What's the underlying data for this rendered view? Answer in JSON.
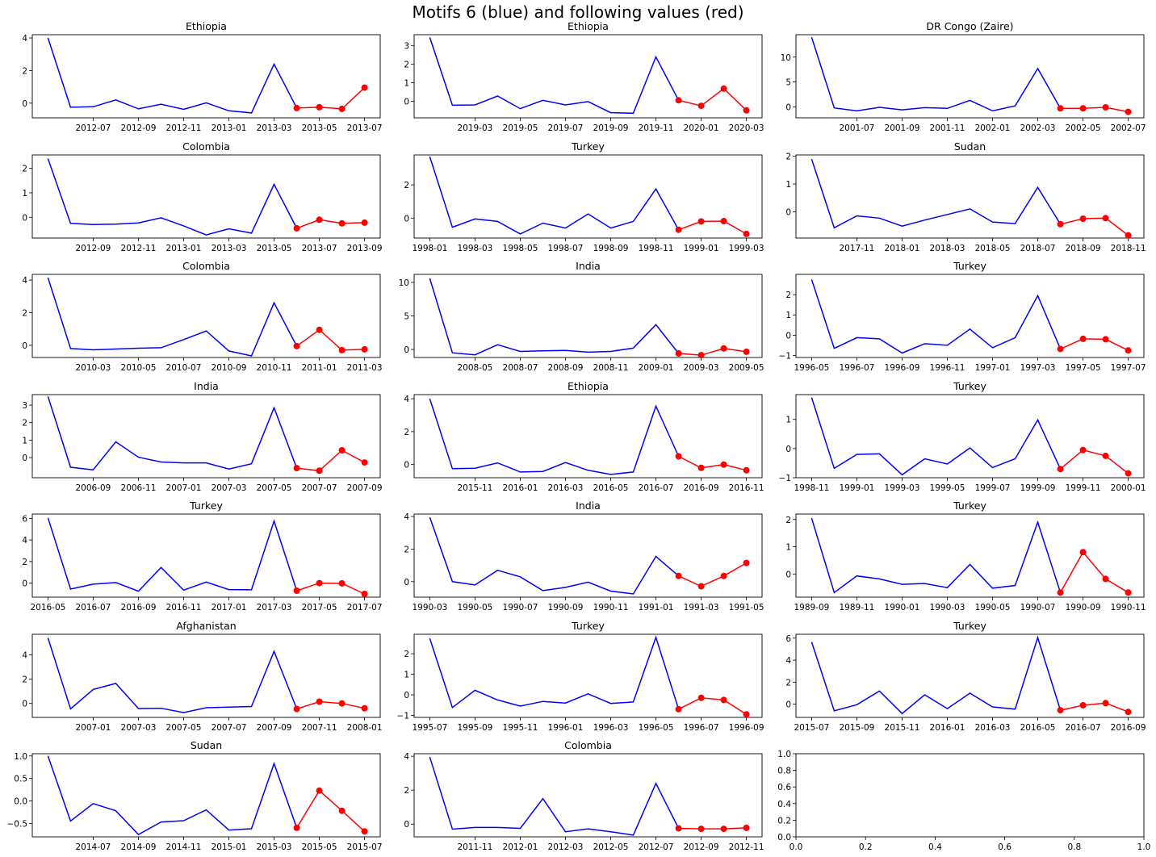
{
  "title": "Motifs 6 (blue) and following values (red)",
  "colors": {
    "motif": "#0000ff",
    "following": "#ff0000",
    "axis": "#000000"
  },
  "chart_data": [
    {
      "type": "line",
      "title": "Ethiopia",
      "ylim": [
        -0.9,
        4.2
      ],
      "yticks": [
        0,
        2,
        4
      ],
      "xticks": [
        "2012-07",
        "2012-09",
        "2012-11",
        "2013-01",
        "2013-03",
        "2013-05",
        "2013-07"
      ],
      "x_start": "2012-05",
      "motif": [
        4.0,
        -0.25,
        -0.22,
        0.2,
        -0.35,
        -0.07,
        -0.38,
        0.02,
        -0.47,
        -0.6,
        2.4,
        -0.3
      ],
      "following": [
        -0.3,
        -0.25,
        -0.35,
        0.95
      ]
    },
    {
      "type": "line",
      "title": "Ethiopia",
      "ylim": [
        -0.9,
        3.6
      ],
      "yticks": [
        0,
        1,
        2,
        3
      ],
      "xticks": [
        "2019-03",
        "2019-05",
        "2019-07",
        "2019-09",
        "2019-11",
        "2020-01",
        "2020-03"
      ],
      "x_start": "2019-01",
      "motif": [
        3.45,
        -0.22,
        -0.2,
        0.28,
        -0.4,
        0.05,
        -0.2,
        -0.02,
        -0.62,
        -0.65,
        2.4,
        0.05
      ],
      "following": [
        0.05,
        -0.25,
        0.68,
        -0.5
      ]
    },
    {
      "type": "line",
      "title": "DR Congo (Zaire)",
      "ylim": [
        -2.2,
        14.5
      ],
      "yticks": [
        0,
        5,
        10
      ],
      "xticks": [
        "2001-07",
        "2001-09",
        "2001-11",
        "2002-01",
        "2002-03",
        "2002-05",
        "2002-07"
      ],
      "x_start": "2001-05",
      "motif": [
        14.0,
        -0.2,
        -0.8,
        -0.1,
        -0.6,
        -0.15,
        -0.3,
        1.3,
        -0.8,
        0.2,
        7.7,
        -0.3
      ],
      "following": [
        -0.3,
        -0.3,
        -0.1,
        -1.0
      ]
    },
    {
      "type": "line",
      "title": "Colombia",
      "ylim": [
        -0.85,
        2.55
      ],
      "yticks": [
        0,
        1,
        2
      ],
      "xticks": [
        "2012-09",
        "2012-11",
        "2013-01",
        "2013-03",
        "2013-05",
        "2013-07",
        "2013-09"
      ],
      "x_start": "2012-07",
      "motif": [
        2.4,
        -0.25,
        -0.3,
        -0.28,
        -0.23,
        -0.02,
        -0.35,
        -0.72,
        -0.47,
        -0.65,
        1.35,
        -0.45
      ],
      "following": [
        -0.45,
        -0.1,
        -0.25,
        -0.22
      ]
    },
    {
      "type": "line",
      "title": "Turkey",
      "ylim": [
        -1.2,
        3.8
      ],
      "yticks": [
        0,
        2
      ],
      "xticks": [
        "1998-01",
        "1998-03",
        "1998-05",
        "1998-07",
        "1998-09",
        "1998-11",
        "1999-01",
        "1999-03"
      ],
      "x_start": "1998-01",
      "motif": [
        3.7,
        -0.55,
        -0.05,
        -0.2,
        -0.95,
        -0.3,
        -0.6,
        0.25,
        -0.6,
        -0.2,
        1.75,
        -0.7
      ],
      "following": [
        -0.7,
        -0.2,
        -0.18,
        -0.95
      ]
    },
    {
      "type": "line",
      "title": "Sudan",
      "ylim": [
        -0.95,
        2.05
      ],
      "yticks": [
        0,
        1,
        2
      ],
      "xticks": [
        "2017-11",
        "2018-01",
        "2018-03",
        "2018-05",
        "2018-07",
        "2018-09",
        "2018-11"
      ],
      "x_start": "2017-09",
      "motif": [
        1.9,
        -0.58,
        -0.15,
        -0.23,
        -0.52,
        -0.3,
        -0.1,
        0.1,
        -0.37,
        -0.43,
        0.88,
        -0.45
      ],
      "following": [
        -0.45,
        -0.25,
        -0.23,
        -0.85
      ]
    },
    {
      "type": "line",
      "title": "Colombia",
      "ylim": [
        -0.75,
        4.35
      ],
      "yticks": [
        0,
        2,
        4
      ],
      "xticks": [
        "2010-03",
        "2010-05",
        "2010-07",
        "2010-09",
        "2010-11",
        "2011-01",
        "2011-03"
      ],
      "x_start": "2010-01",
      "motif": [
        4.15,
        -0.2,
        -0.28,
        -0.23,
        -0.18,
        -0.15,
        0.35,
        0.88,
        -0.35,
        -0.65,
        2.6,
        -0.05
      ],
      "following": [
        -0.05,
        0.95,
        -0.3,
        -0.25
      ]
    },
    {
      "type": "line",
      "title": "India",
      "ylim": [
        -1.2,
        11.2
      ],
      "yticks": [
        0,
        5,
        10
      ],
      "xticks": [
        "2008-05",
        "2008-07",
        "2008-09",
        "2008-11",
        "2009-01",
        "2009-03",
        "2009-05"
      ],
      "x_start": "2008-03",
      "motif": [
        10.6,
        -0.5,
        -0.8,
        0.7,
        -0.3,
        -0.2,
        -0.15,
        -0.4,
        -0.3,
        0.2,
        3.7,
        -0.6
      ],
      "following": [
        -0.6,
        -0.85,
        0.15,
        -0.35
      ]
    },
    {
      "type": "line",
      "title": "Turkey",
      "ylim": [
        -1.1,
        3.0
      ],
      "yticks": [
        -1,
        0,
        1,
        2
      ],
      "xticks": [
        "1996-05",
        "1996-07",
        "1996-09",
        "1996-11",
        "1997-01",
        "1997-03",
        "1997-05",
        "1997-07"
      ],
      "x_start": "1996-05",
      "motif": [
        2.75,
        -0.65,
        -0.12,
        -0.18,
        -0.88,
        -0.42,
        -0.5,
        0.3,
        -0.62,
        -0.12,
        1.95,
        -0.68
      ],
      "following": [
        -0.68,
        -0.18,
        -0.2,
        -0.75
      ]
    },
    {
      "type": "line",
      "title": "India",
      "ylim": [
        -1.15,
        3.6
      ],
      "yticks": [
        0,
        1,
        2,
        3
      ],
      "xticks": [
        "2006-09",
        "2006-11",
        "2007-01",
        "2007-03",
        "2007-05",
        "2007-07",
        "2007-09"
      ],
      "x_start": "2006-07",
      "motif": [
        3.5,
        -0.55,
        -0.7,
        0.9,
        0.02,
        -0.25,
        -0.3,
        -0.3,
        -0.65,
        -0.35,
        2.85,
        -0.6
      ],
      "following": [
        -0.6,
        -0.75,
        0.42,
        -0.28
      ]
    },
    {
      "type": "line",
      "title": "Ethiopia",
      "ylim": [
        -0.8,
        4.25
      ],
      "yticks": [
        0,
        2,
        4
      ],
      "xticks": [
        "2015-11",
        "2016-01",
        "2016-03",
        "2016-05",
        "2016-07",
        "2016-09",
        "2016-11"
      ],
      "x_start": "2015-09",
      "motif": [
        4.0,
        -0.25,
        -0.22,
        0.1,
        -0.45,
        -0.42,
        0.12,
        -0.35,
        -0.6,
        -0.45,
        3.55,
        0.5
      ],
      "following": [
        0.5,
        -0.2,
        0.0,
        -0.35
      ]
    },
    {
      "type": "line",
      "title": "Turkey",
      "ylim": [
        -1.0,
        1.85
      ],
      "yticks": [
        -1,
        0,
        1
      ],
      "xticks": [
        "1998-11",
        "1999-01",
        "1999-03",
        "1999-05",
        "1999-07",
        "1999-09",
        "1999-11",
        "2000-01"
      ],
      "x_start": "1998-11",
      "motif": [
        1.75,
        -0.68,
        -0.2,
        -0.18,
        -0.9,
        -0.35,
        -0.53,
        0.02,
        -0.65,
        -0.35,
        0.98,
        -0.7
      ],
      "following": [
        -0.7,
        -0.05,
        -0.25,
        -0.85
      ]
    },
    {
      "type": "line",
      "title": "Turkey",
      "ylim": [
        -1.3,
        6.4
      ],
      "yticks": [
        0,
        2,
        4,
        6
      ],
      "xticks": [
        "2016-05",
        "2016-07",
        "2016-09",
        "2016-11",
        "2017-01",
        "2017-03",
        "2017-05",
        "2017-07"
      ],
      "x_start": "2016-05",
      "motif": [
        6.05,
        -0.55,
        -0.1,
        0.05,
        -0.75,
        1.45,
        -0.65,
        0.1,
        -0.6,
        -0.62,
        5.75,
        -0.7
      ],
      "following": [
        -0.7,
        0.0,
        -0.02,
        -1.0
      ]
    },
    {
      "type": "line",
      "title": "India",
      "ylim": [
        -0.95,
        4.15
      ],
      "yticks": [
        0,
        2,
        4
      ],
      "xticks": [
        "1990-03",
        "1990-05",
        "1990-07",
        "1990-09",
        "1990-11",
        "1991-01",
        "1991-03",
        "1991-05"
      ],
      "x_start": "1990-03",
      "motif": [
        3.95,
        0.0,
        -0.2,
        0.7,
        0.3,
        -0.55,
        -0.35,
        -0.03,
        -0.58,
        -0.75,
        1.55,
        0.35
      ],
      "following": [
        0.35,
        -0.28,
        0.35,
        1.15
      ]
    },
    {
      "type": "line",
      "title": "Turkey",
      "ylim": [
        -0.85,
        2.2
      ],
      "yticks": [
        0,
        1,
        2
      ],
      "xticks": [
        "1989-09",
        "1989-11",
        "1990-01",
        "1990-03",
        "1990-05",
        "1990-07",
        "1990-09",
        "1990-11"
      ],
      "x_start": "1989-09",
      "motif": [
        2.05,
        -0.68,
        -0.07,
        -0.18,
        -0.38,
        -0.35,
        -0.5,
        0.35,
        -0.52,
        -0.42,
        1.9,
        -0.68
      ],
      "following": [
        -0.68,
        0.8,
        -0.18,
        -0.68
      ]
    },
    {
      "type": "line",
      "title": "Afghanistan",
      "ylim": [
        -1.15,
        5.7
      ],
      "yticks": [
        0,
        2,
        4
      ],
      "xticks": [
        "2007-01",
        "2007-03",
        "2007-05",
        "2007-07",
        "2007-09",
        "2007-11",
        "2008-01"
      ],
      "x_start": "2006-11",
      "motif": [
        5.4,
        -0.45,
        1.15,
        1.65,
        -0.42,
        -0.4,
        -0.75,
        -0.35,
        -0.3,
        -0.25,
        4.3,
        -0.45
      ],
      "following": [
        -0.45,
        0.15,
        0.0,
        -0.4
      ]
    },
    {
      "type": "line",
      "title": "Turkey",
      "ylim": [
        -1.1,
        2.95
      ],
      "yticks": [
        -1,
        0,
        1,
        2
      ],
      "xticks": [
        "1995-07",
        "1995-09",
        "1995-11",
        "1996-01",
        "1996-03",
        "1996-05",
        "1996-07",
        "1996-09"
      ],
      "x_start": "1995-07",
      "motif": [
        2.75,
        -0.62,
        0.22,
        -0.25,
        -0.55,
        -0.32,
        -0.4,
        0.05,
        -0.42,
        -0.35,
        2.8,
        -0.7
      ],
      "following": [
        -0.7,
        -0.15,
        -0.25,
        -0.95
      ]
    },
    {
      "type": "line",
      "title": "Turkey",
      "ylim": [
        -1.2,
        6.35
      ],
      "yticks": [
        0,
        2,
        4,
        6
      ],
      "xticks": [
        "2015-07",
        "2015-09",
        "2015-11",
        "2016-01",
        "2016-03",
        "2016-05",
        "2016-07",
        "2016-09"
      ],
      "x_start": "2015-07",
      "motif": [
        5.65,
        -0.6,
        -0.05,
        1.2,
        -0.85,
        0.85,
        -0.4,
        1.0,
        -0.25,
        -0.45,
        6.05,
        -0.55
      ],
      "following": [
        -0.55,
        -0.1,
        0.1,
        -0.7
      ]
    },
    {
      "type": "line",
      "title": "Sudan",
      "ylim": [
        -0.8,
        1.05
      ],
      "yticks": [
        -0.5,
        0.0,
        0.5,
        1.0
      ],
      "ytick_labels": [
        "−0.5",
        "0.0",
        "0.5",
        "1.0"
      ],
      "xticks": [
        "2014-07",
        "2014-09",
        "2014-11",
        "2015-01",
        "2015-03",
        "2015-05",
        "2015-07"
      ],
      "x_start": "2014-05",
      "motif": [
        1.0,
        -0.45,
        -0.06,
        -0.22,
        -0.75,
        -0.47,
        -0.44,
        -0.2,
        -0.65,
        -0.62,
        0.83,
        -0.6
      ],
      "following": [
        -0.6,
        0.23,
        -0.22,
        -0.68
      ]
    },
    {
      "type": "line",
      "title": "Colombia",
      "ylim": [
        -0.75,
        4.15
      ],
      "yticks": [
        0,
        2,
        4
      ],
      "xticks": [
        "2011-11",
        "2012-01",
        "2012-03",
        "2012-05",
        "2012-07",
        "2012-09",
        "2012-11"
      ],
      "x_start": "2011-09",
      "motif": [
        3.95,
        -0.3,
        -0.2,
        -0.2,
        -0.25,
        1.5,
        -0.45,
        -0.28,
        -0.45,
        -0.65,
        2.4,
        -0.25
      ],
      "following": [
        -0.25,
        -0.28,
        -0.28,
        -0.22
      ]
    },
    {
      "type": "empty",
      "title": "",
      "xlim": [
        0,
        1
      ],
      "ylim": [
        0,
        1
      ],
      "xticks": [
        "0.0",
        "0.2",
        "0.4",
        "0.6",
        "0.8",
        "1.0"
      ],
      "yticks": [
        "0.0",
        "0.2",
        "0.4",
        "0.6",
        "0.8",
        "1.0"
      ]
    }
  ]
}
